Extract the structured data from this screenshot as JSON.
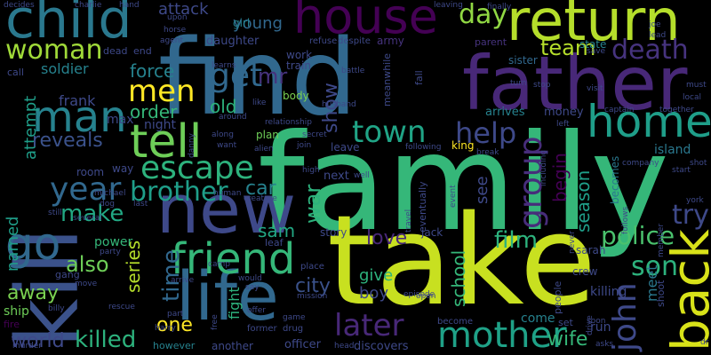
{
  "wordcloud": {
    "background": "#000000",
    "words": [
      {
        "text": "family",
        "color": "#35b779"
      },
      {
        "text": "take",
        "color": "#c8e020"
      },
      {
        "text": "find",
        "color": "#31688e"
      },
      {
        "text": "kill",
        "color": "#3b528b"
      },
      {
        "text": "father",
        "color": "#482878"
      },
      {
        "text": "return",
        "color": "#b5de2b"
      },
      {
        "text": "house",
        "color": "#440154"
      },
      {
        "text": "child",
        "color": "#2a788e"
      },
      {
        "text": "new",
        "color": "#3e4989"
      },
      {
        "text": "life",
        "color": "#31688e"
      },
      {
        "text": "back",
        "color": "#d8e219"
      },
      {
        "text": "home",
        "color": "#1f9e89"
      },
      {
        "text": "tell",
        "color": "#6ece58"
      },
      {
        "text": "man",
        "color": "#26828e"
      },
      {
        "text": "go",
        "color": "#31688e"
      },
      {
        "text": "friend",
        "color": "#35b779"
      },
      {
        "text": "mother",
        "color": "#1fa187"
      },
      {
        "text": "escape",
        "color": "#2db27d"
      },
      {
        "text": "woman",
        "color": "#a0da39"
      },
      {
        "text": "death",
        "color": "#46337e"
      },
      {
        "text": "town",
        "color": "#20a486"
      },
      {
        "text": "help",
        "color": "#3e4989"
      },
      {
        "text": "men",
        "color": "#fde725"
      },
      {
        "text": "get",
        "color": "#31688e"
      },
      {
        "text": "year",
        "color": "#31688e"
      },
      {
        "text": "group",
        "color": "#472d7b"
      },
      {
        "text": "later",
        "color": "#482878"
      },
      {
        "text": "day",
        "color": "#90d743"
      },
      {
        "text": "team",
        "color": "#b5de2b"
      },
      {
        "text": "john",
        "color": "#3e4989"
      },
      {
        "text": "police",
        "color": "#4ac16d"
      },
      {
        "text": "brother",
        "color": "#1f9e89"
      },
      {
        "text": "try",
        "color": "#3e4989"
      },
      {
        "text": "son",
        "color": "#2db27d"
      },
      {
        "text": "make",
        "color": "#22a884"
      },
      {
        "text": "time",
        "color": "#31688e"
      },
      {
        "text": "love",
        "color": "#482878"
      },
      {
        "text": "film",
        "color": "#2db27d"
      },
      {
        "text": "killed",
        "color": "#2db27d"
      },
      {
        "text": "wife",
        "color": "#35b779"
      },
      {
        "text": "also",
        "color": "#6ece58"
      },
      {
        "text": "war",
        "color": "#2db27d"
      },
      {
        "text": "world",
        "color": "#3e4989"
      },
      {
        "text": "city",
        "color": "#3b528b"
      },
      {
        "text": "one",
        "color": "#fde725"
      },
      {
        "text": "car",
        "color": "#26828e"
      },
      {
        "text": "old",
        "color": "#2db27d"
      },
      {
        "text": "sam",
        "color": "#22a884"
      },
      {
        "text": "away",
        "color": "#7ad151"
      },
      {
        "text": "named",
        "color": "#1f9e89"
      },
      {
        "text": "attempt",
        "color": "#1f9e89"
      },
      {
        "text": "force",
        "color": "#26828e"
      },
      {
        "text": "order",
        "color": "#35b779"
      },
      {
        "text": "reveals",
        "color": "#3b528b"
      },
      {
        "text": "attack",
        "color": "#3e4989"
      },
      {
        "text": "young",
        "color": "#31688e"
      },
      {
        "text": "mr",
        "color": "#46337e"
      },
      {
        "text": "show",
        "color": "#3e4989"
      },
      {
        "text": "see",
        "color": "#3e4989"
      },
      {
        "text": "begin",
        "color": "#440154"
      },
      {
        "text": "season",
        "color": "#1f9e89"
      },
      {
        "text": "school",
        "color": "#35b779"
      },
      {
        "text": "series",
        "color": "#b5de2b"
      },
      {
        "text": "give",
        "color": "#2db27d"
      },
      {
        "text": "boy",
        "color": "#3e4989"
      },
      {
        "text": "fight",
        "color": "#2db27d"
      },
      {
        "text": "soldier",
        "color": "#26828e"
      },
      {
        "text": "frank",
        "color": "#3e4989"
      },
      {
        "text": "max",
        "color": "#3e4989"
      },
      {
        "text": "night",
        "color": "#3e4989"
      },
      {
        "text": "power",
        "color": "#35b779"
      },
      {
        "text": "ship",
        "color": "#6ece58"
      },
      {
        "text": "meet",
        "color": "#2a788e"
      },
      {
        "text": "killing",
        "color": "#3e4989"
      },
      {
        "text": "come",
        "color": "#26828e"
      },
      {
        "text": "run",
        "color": "#3e4989"
      },
      {
        "text": "island",
        "color": "#2a788e"
      },
      {
        "text": "becomes",
        "color": "#2a788e"
      },
      {
        "text": "money",
        "color": "#3e4989"
      },
      {
        "text": "arrives",
        "color": "#26828e"
      },
      {
        "text": "sister",
        "color": "#31688e"
      },
      {
        "text": "army",
        "color": "#46337e"
      },
      {
        "text": "state",
        "color": "#26828e"
      },
      {
        "text": "parent",
        "color": "#46337e"
      },
      {
        "text": "daughter",
        "color": "#3e4989"
      },
      {
        "text": "girl",
        "color": "#26828e"
      },
      {
        "text": "work",
        "color": "#3e4989"
      },
      {
        "text": "train",
        "color": "#3e4989"
      },
      {
        "text": "body",
        "color": "#7ad151"
      },
      {
        "text": "plan",
        "color": "#6ece58"
      },
      {
        "text": "officer",
        "color": "#3e4989"
      },
      {
        "text": "discovers",
        "color": "#3e4989"
      },
      {
        "text": "another",
        "color": "#3e4989"
      },
      {
        "text": "however",
        "color": "#26828e"
      },
      {
        "text": "story",
        "color": "#3e4989"
      },
      {
        "text": "next",
        "color": "#3e4989"
      },
      {
        "text": "jack",
        "color": "#3e4989"
      },
      {
        "text": "crew",
        "color": "#3e4989"
      },
      {
        "text": "sarah",
        "color": "#3e4989"
      },
      {
        "text": "leave",
        "color": "#3e4989"
      },
      {
        "text": "king",
        "color": "#fde725"
      },
      {
        "text": "room",
        "color": "#3e4989"
      },
      {
        "text": "way",
        "color": "#3e4989"
      },
      {
        "text": "call",
        "color": "#3e4989"
      },
      {
        "text": "dead",
        "color": "#3e4989"
      },
      {
        "text": "end",
        "color": "#3e4989"
      },
      {
        "text": "gang",
        "color": "#3e4989"
      },
      {
        "text": "fire",
        "color": "#440154"
      },
      {
        "text": "set",
        "color": "#3e4989"
      },
      {
        "text": "become",
        "color": "#3e4989"
      },
      {
        "text": "leaf",
        "color": "#3e4989"
      },
      {
        "text": "place",
        "color": "#3e4989"
      },
      {
        "text": "eventually",
        "color": "#3e4989"
      },
      {
        "text": "people",
        "color": "#3e4989"
      },
      {
        "text": "meanwhile",
        "color": "#3e4989"
      },
      {
        "text": "fall",
        "color": "#3e4989"
      },
      {
        "text": "refuse",
        "color": "#3e4989"
      },
      {
        "text": "despite",
        "color": "#3e4989"
      },
      {
        "text": "upon",
        "color": "#3e4989"
      },
      {
        "text": "agent",
        "color": "#3e4989"
      },
      {
        "text": "horse",
        "color": "#3e4989"
      },
      {
        "text": "decides",
        "color": "#3e4989"
      },
      {
        "text": "charlie",
        "color": "#3e4989"
      },
      {
        "text": "hand",
        "color": "#3e4989"
      },
      {
        "text": "leaving",
        "color": "#3e4989"
      },
      {
        "text": "finally",
        "color": "#3e4989"
      },
      {
        "text": "joe",
        "color": "#3e4989"
      },
      {
        "text": "lead",
        "color": "#3e4989"
      },
      {
        "text": "save",
        "color": "#3e4989"
      },
      {
        "text": "turn",
        "color": "#3e4989"
      },
      {
        "text": "visit",
        "color": "#3e4989"
      },
      {
        "text": "must",
        "color": "#3e4989"
      },
      {
        "text": "local",
        "color": "#3e4989"
      },
      {
        "text": "captain",
        "color": "#3e4989"
      },
      {
        "text": "together",
        "color": "#3e4989"
      },
      {
        "text": "left",
        "color": "#3e4989"
      },
      {
        "text": "break",
        "color": "#3e4989"
      },
      {
        "text": "following",
        "color": "#3e4989"
      },
      {
        "text": "including",
        "color": "#3e4989"
      },
      {
        "text": "company",
        "color": "#3e4989"
      },
      {
        "text": "start",
        "color": "#3e4989"
      },
      {
        "text": "shot",
        "color": "#3e4989"
      },
      {
        "text": "york",
        "color": "#3e4989"
      },
      {
        "text": "member",
        "color": "#3e4989"
      },
      {
        "text": "shoot",
        "color": "#3e4989"
      },
      {
        "text": "drive",
        "color": "#3e4989"
      },
      {
        "text": "soon",
        "color": "#3e4989"
      },
      {
        "text": "never",
        "color": "#3e4989"
      },
      {
        "text": "episode",
        "color": "#3e4989"
      },
      {
        "text": "open",
        "color": "#3e4989"
      },
      {
        "text": "asks",
        "color": "#3e4989"
      },
      {
        "text": "head",
        "color": "#3e4989"
      },
      {
        "text": "game",
        "color": "#3e4989"
      },
      {
        "text": "mission",
        "color": "#3e4989"
      },
      {
        "text": "drug",
        "color": "#3e4989"
      },
      {
        "text": "former",
        "color": "#3e4989"
      },
      {
        "text": "offer",
        "color": "#3e4989"
      },
      {
        "text": "say",
        "color": "#3e4989"
      },
      {
        "text": "would",
        "color": "#3e4989"
      },
      {
        "text": "free",
        "color": "#3e4989"
      },
      {
        "text": "harry",
        "color": "#3e4989"
      },
      {
        "text": "part",
        "color": "#3e4989"
      },
      {
        "text": "arrive",
        "color": "#3e4989"
      },
      {
        "text": "camp",
        "color": "#3e4989"
      },
      {
        "text": "rescue",
        "color": "#3e4989"
      },
      {
        "text": "billy",
        "color": "#3e4989"
      },
      {
        "text": "move",
        "color": "#3e4989"
      },
      {
        "text": "murder",
        "color": "#3e4989"
      },
      {
        "text": "party",
        "color": "#3e4989"
      },
      {
        "text": "several",
        "color": "#3e4989"
      },
      {
        "text": "still",
        "color": "#3e4989"
      },
      {
        "text": "michael",
        "color": "#3e4989"
      },
      {
        "text": "last",
        "color": "#3e4989"
      },
      {
        "text": "dog",
        "color": "#3e4989"
      },
      {
        "text": "human",
        "color": "#3e4989"
      },
      {
        "text": "creature",
        "color": "#3e4989"
      },
      {
        "text": "along",
        "color": "#3e4989"
      },
      {
        "text": "danny",
        "color": "#3e4989"
      },
      {
        "text": "want",
        "color": "#3e4989"
      },
      {
        "text": "alien",
        "color": "#3e4989"
      },
      {
        "text": "join",
        "color": "#3e4989"
      },
      {
        "text": "high",
        "color": "#3e4989"
      },
      {
        "text": "secret",
        "color": "#3e4989"
      },
      {
        "text": "relationship",
        "color": "#3e4989"
      },
      {
        "text": "around",
        "color": "#3e4989"
      },
      {
        "text": "like",
        "color": "#3e4989"
      },
      {
        "text": "learns",
        "color": "#3e4989"
      },
      {
        "text": "battle",
        "color": "#3e4989"
      },
      {
        "text": "husband",
        "color": "#3e4989"
      },
      {
        "text": "travel",
        "color": "#3e4989"
      },
      {
        "text": "event",
        "color": "#3e4989"
      },
      {
        "text": "stop",
        "color": "#3e4989"
      },
      {
        "text": "well",
        "color": "#3e4989"
      },
      {
        "text": "dr",
        "color": "#3e4989"
      },
      {
        "text": "follows",
        "color": "#3e4989"
      }
    ]
  }
}
